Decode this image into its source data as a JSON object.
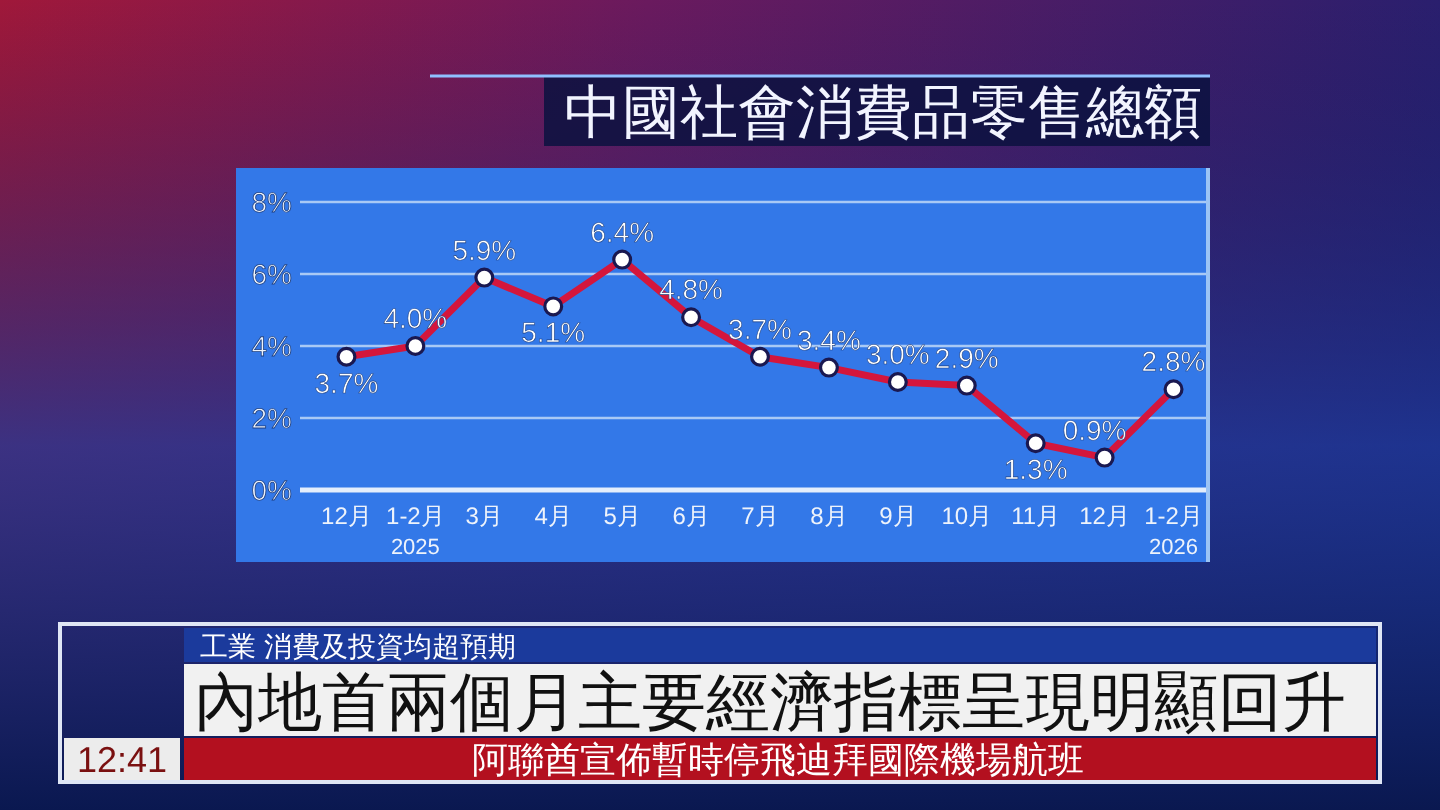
{
  "chart_data": {
    "type": "line",
    "title": "中國社會消費品零售總額",
    "categories": [
      "12月",
      "1-2月\n2025",
      "3月",
      "4月",
      "5月",
      "6月",
      "7月",
      "8月",
      "9月",
      "10月",
      "11月",
      "12月",
      "1-2月\n2026"
    ],
    "values": [
      3.7,
      4.0,
      5.9,
      5.1,
      6.4,
      4.8,
      3.7,
      3.4,
      3.0,
      2.9,
      1.3,
      0.9,
      2.8
    ],
    "value_labels": [
      "3.7%",
      "4.0%",
      "5.9%",
      "5.1%",
      "6.4%",
      "4.8%",
      "3.7%",
      "3.4%",
      "3.0%",
      "2.9%",
      "1.3%",
      "0.9%",
      "2.8%"
    ],
    "color": "#d4163c",
    "ylim": [
      0,
      8
    ],
    "yticks": [
      {
        "value": 0,
        "label": "0%"
      },
      {
        "value": 2,
        "label": "2%"
      },
      {
        "value": 4,
        "label": "4%"
      },
      {
        "value": 6,
        "label": "6%"
      },
      {
        "value": 8,
        "label": "8%"
      }
    ],
    "grid": "y",
    "marker": "circle",
    "line_style": "solid",
    "annotations": [
      "工業 消費及投資均超預期",
      "內地首兩個月主要經濟指標呈現明顯回升",
      "阿聯酋宣佈暫時停飛迪拜國際機場航班",
      "12:41"
    ]
  }
}
